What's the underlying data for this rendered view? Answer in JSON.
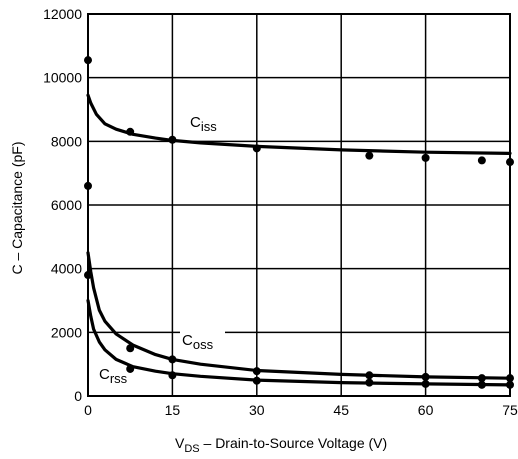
{
  "chart_data": {
    "type": "line",
    "xlabel": {
      "prefix": "V",
      "sub": "DS",
      "rest": " – Drain-to-Source Voltage (V)"
    },
    "ylabel": "C – Capacitance (pF)",
    "xlim": [
      0,
      75
    ],
    "ylim": [
      0,
      12000
    ],
    "xticks": [
      0,
      15,
      30,
      45,
      60,
      75
    ],
    "yticks": [
      0,
      2000,
      4000,
      6000,
      8000,
      10000,
      12000
    ],
    "grid": true,
    "series": [
      {
        "name": "C",
        "name_sub": "iss",
        "curve_x": [
          0,
          0.5,
          1.5,
          3,
          5,
          8,
          12,
          15,
          20,
          30,
          45,
          60,
          75
        ],
        "curve_y": [
          9450,
          9200,
          8850,
          8550,
          8380,
          8220,
          8100,
          8030,
          7950,
          7840,
          7730,
          7660,
          7620
        ],
        "points_x": [
          0,
          0,
          7.5,
          15,
          30,
          50,
          60,
          70,
          75
        ],
        "points_y": [
          10550,
          6600,
          8300,
          8050,
          7780,
          7550,
          7480,
          7400,
          7350
        ]
      },
      {
        "name": "C",
        "name_sub": "oss",
        "curve_x": [
          0,
          0.5,
          1,
          2,
          3,
          5,
          8,
          12,
          15,
          20,
          30,
          45,
          60,
          75
        ],
        "curve_y": [
          4500,
          3900,
          3400,
          2700,
          2350,
          1950,
          1600,
          1300,
          1150,
          1000,
          800,
          680,
          600,
          560
        ],
        "points_x": [
          7.5,
          15,
          30,
          50,
          60,
          70,
          75
        ],
        "points_y": [
          1500,
          1150,
          780,
          650,
          600,
          560,
          560
        ]
      },
      {
        "name": "C",
        "name_sub": "rss",
        "curve_x": [
          0,
          0.5,
          1,
          2,
          3,
          5,
          8,
          12,
          15,
          20,
          30,
          45,
          60,
          75
        ],
        "curve_y": [
          3000,
          2500,
          2100,
          1700,
          1450,
          1150,
          920,
          780,
          700,
          620,
          500,
          420,
          380,
          350
        ],
        "points_x": [
          0,
          7.5,
          15,
          30,
          50,
          60,
          70,
          75
        ],
        "points_y": [
          3800,
          850,
          650,
          480,
          420,
          380,
          350,
          350
        ]
      }
    ]
  }
}
